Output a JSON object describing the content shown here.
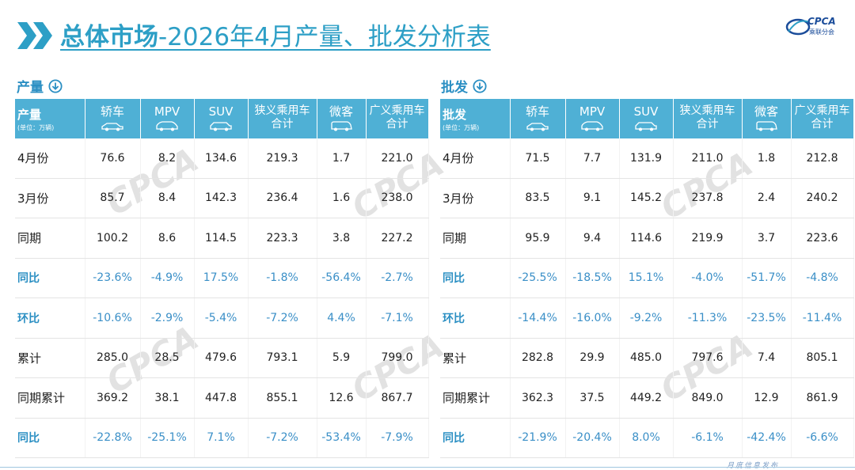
{
  "header": {
    "title_bold": "总体市场",
    "title_rest": "-2026年4月产量、批发分析表",
    "logo_text": "CPCA",
    "logo_sub": "乘联分会",
    "logo_mark": "CPCA"
  },
  "watermark_text": "CPCA",
  "footer": {
    "text": "月度信息发布"
  },
  "accent_color": "#4fb0d5",
  "percent_color": "#3a8fc7",
  "columns": [
    "轿车",
    "MPV",
    "SUV",
    "狭义乘用车合计",
    "微客",
    "广义乘用车合计"
  ],
  "column_lines": [
    [
      "轿车"
    ],
    [
      "MPV"
    ],
    [
      "SUV"
    ],
    [
      "狭义乘用车",
      "合计"
    ],
    [
      "微客"
    ],
    [
      "广义乘用车",
      "合计"
    ]
  ],
  "production": {
    "section_label": "产量",
    "corner_name": "产量",
    "corner_unit": "(单位：万辆)",
    "rows": [
      {
        "label": "4月份",
        "type": "data",
        "values": [
          "76.6",
          "8.2",
          "134.6",
          "219.3",
          "1.7",
          "221.0"
        ]
      },
      {
        "label": "3月份",
        "type": "data",
        "values": [
          "85.7",
          "8.4",
          "142.3",
          "236.4",
          "1.6",
          "238.0"
        ]
      },
      {
        "label": "同期",
        "type": "data",
        "values": [
          "100.2",
          "8.6",
          "114.5",
          "223.3",
          "3.8",
          "227.2"
        ]
      },
      {
        "label": "同比",
        "type": "pct",
        "values": [
          "-23.6%",
          "-4.9%",
          "17.5%",
          "-1.8%",
          "-56.4%",
          "-2.7%"
        ]
      },
      {
        "label": "环比",
        "type": "pct",
        "values": [
          "-10.6%",
          "-2.9%",
          "-5.4%",
          "-7.2%",
          "4.4%",
          "-7.1%"
        ]
      },
      {
        "label": "累计",
        "type": "data",
        "values": [
          "285.0",
          "28.5",
          "479.6",
          "793.1",
          "5.9",
          "799.0"
        ]
      },
      {
        "label": "同期累计",
        "type": "data",
        "values": [
          "369.2",
          "38.1",
          "447.8",
          "855.1",
          "12.6",
          "867.7"
        ]
      },
      {
        "label": "同比",
        "type": "pct",
        "values": [
          "-22.8%",
          "-25.1%",
          "7.1%",
          "-7.2%",
          "-53.4%",
          "-7.9%"
        ]
      }
    ]
  },
  "wholesale": {
    "section_label": "批发",
    "corner_name": "批发",
    "corner_unit": "(单位：万辆)",
    "rows": [
      {
        "label": "4月份",
        "type": "data",
        "values": [
          "71.5",
          "7.7",
          "131.9",
          "211.0",
          "1.8",
          "212.8"
        ]
      },
      {
        "label": "3月份",
        "type": "data",
        "values": [
          "83.5",
          "9.1",
          "145.2",
          "237.8",
          "2.4",
          "240.2"
        ]
      },
      {
        "label": "同期",
        "type": "data",
        "values": [
          "95.9",
          "9.4",
          "114.6",
          "219.9",
          "3.7",
          "223.6"
        ]
      },
      {
        "label": "同比",
        "type": "pct",
        "values": [
          "-25.5%",
          "-18.5%",
          "15.1%",
          "-4.0%",
          "-51.7%",
          "-4.8%"
        ]
      },
      {
        "label": "环比",
        "type": "pct",
        "values": [
          "-14.4%",
          "-16.0%",
          "-9.2%",
          "-11.3%",
          "-23.5%",
          "-11.4%"
        ]
      },
      {
        "label": "累计",
        "type": "data",
        "values": [
          "282.8",
          "29.9",
          "485.0",
          "797.6",
          "7.4",
          "805.1"
        ]
      },
      {
        "label": "同期累计",
        "type": "data",
        "values": [
          "362.3",
          "37.5",
          "449.2",
          "849.0",
          "12.9",
          "861.9"
        ]
      },
      {
        "label": "同比",
        "type": "pct",
        "values": [
          "-21.9%",
          "-20.4%",
          "8.0%",
          "-6.1%",
          "-42.4%",
          "-6.6%"
        ]
      }
    ]
  },
  "icons": {
    "chevron": "double-chevron-right-icon",
    "section": "arrow-down-circle-icon",
    "vehicle": [
      "sedan-icon",
      "mpv-icon",
      "suv-icon",
      "car-icon",
      "van-icon",
      "car-icon"
    ]
  }
}
